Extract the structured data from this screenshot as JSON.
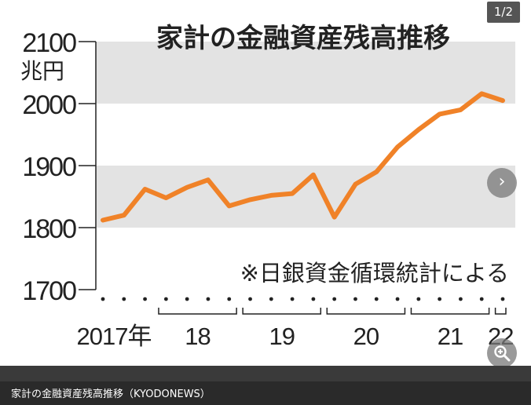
{
  "viewer": {
    "counter": "1/2",
    "caption": "家計の金融資産残高推移（KYODONEWS）"
  },
  "chart_data": {
    "type": "line",
    "title": "家計の金融資産残高推移",
    "ylabel": "兆円",
    "ylim": [
      1700,
      2100
    ],
    "yticks": [
      1700,
      1800,
      1900,
      2000,
      2100
    ],
    "note": "※日銀資金循環統計による",
    "year_labels": [
      "2017年",
      "18",
      "19",
      "20",
      "21",
      "22"
    ],
    "quarters_per_year": [
      3,
      4,
      4,
      4,
      4,
      1
    ],
    "series": [
      {
        "name": "家計の金融資産残高",
        "color": "#f08228",
        "values": [
          1812,
          1820,
          1862,
          1848,
          1865,
          1877,
          1835,
          1845,
          1852,
          1855,
          1885,
          1817,
          1870,
          1890,
          1930,
          1958,
          1983,
          1990,
          2016,
          2005
        ]
      }
    ]
  }
}
